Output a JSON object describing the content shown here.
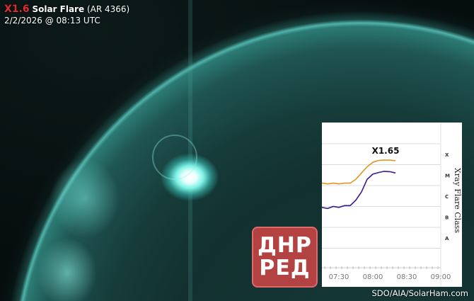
{
  "header": {
    "flare_class": "X1.6",
    "flare_label": "Solar Flare",
    "region": "(AR 4366)",
    "datetime": "2/2/2026 @ 08:13 UTC"
  },
  "credit": "SDO/AIA/SolarHam.com",
  "watermark": {
    "line1": "ДНР",
    "line2": "РЕД",
    "color": "#e04646"
  },
  "colors": {
    "sun": "#2c7a74",
    "flare_class": "#e02b2b",
    "long_channel": "#e0961e",
    "short_channel": "#3a1a8c"
  },
  "inset_chart": {
    "type": "line",
    "annotation": "X1.65",
    "ylabel": "Xray Flare Class",
    "y_scale": "log",
    "class_labels": [
      "X",
      "M",
      "C",
      "B",
      "A"
    ],
    "x_ticks": [
      "07:30",
      "08:00",
      "08:30",
      "09:00"
    ],
    "times": [
      "07:15",
      "07:20",
      "07:25",
      "07:30",
      "07:35",
      "07:40",
      "07:45",
      "07:50",
      "07:55",
      "08:00",
      "08:05",
      "08:10",
      "08:15",
      "08:20"
    ],
    "series": [
      {
        "color": "#e0961e",
        "values": [
          1.3e-05,
          1.2e-05,
          1.3e-05,
          1.2e-05,
          1.3e-05,
          1.3e-05,
          2e-05,
          4e-05,
          8e-05,
          0.00013,
          0.00016,
          0.000165,
          0.000165,
          0.000155
        ]
      },
      {
        "color": "#3a1a8c",
        "values": [
          9e-07,
          8e-07,
          1e-06,
          9e-07,
          1.1e-06,
          1.1e-06,
          2e-06,
          5e-06,
          2e-05,
          3.5e-05,
          4.2e-05,
          4.8e-05,
          4.6e-05,
          4e-05
        ]
      }
    ],
    "grid": true
  }
}
